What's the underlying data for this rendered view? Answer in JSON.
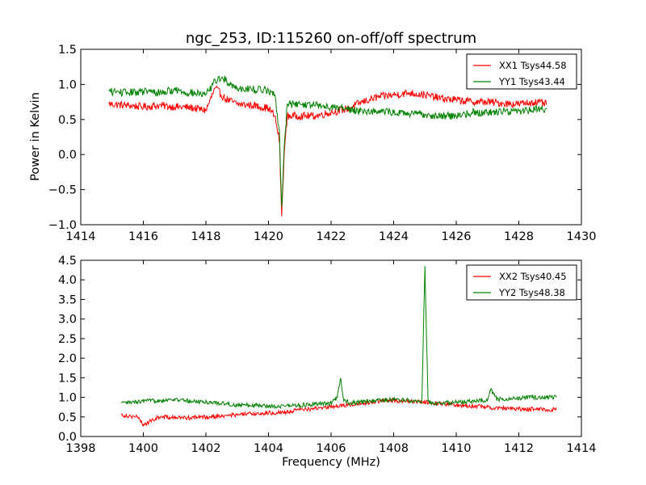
{
  "figure": {
    "title": "ngc_253, ID:115260 on-off/off spectrum",
    "xlabel": "Frequency (MHz)",
    "ylabel": "Power in Kelvin"
  },
  "chart_data": [
    {
      "type": "line",
      "title": "ngc_253, ID:115260 on-off/off spectrum",
      "xlabel": "",
      "ylabel": "Power in Kelvin",
      "xlim": [
        1414,
        1430
      ],
      "ylim": [
        -1.0,
        1.5
      ],
      "xticks": [
        1414,
        1416,
        1418,
        1420,
        1422,
        1424,
        1426,
        1428,
        1430
      ],
      "yticks": [
        -1.0,
        -0.5,
        0.0,
        0.5,
        1.0,
        1.5
      ],
      "xtick_labels": [
        "1414",
        "1416",
        "1418",
        "1420",
        "1422",
        "1424",
        "1426",
        "1428",
        "1430"
      ],
      "ytick_labels": [
        "−1.0",
        "−0.5",
        "0.0",
        "0.5",
        "1.0",
        "1.5"
      ],
      "grid": false,
      "legend": "top-right",
      "series": [
        {
          "name": "XX1 Tsys44.58",
          "color": "#ff0000",
          "x": [
            1414.9,
            1415.5,
            1416.0,
            1416.5,
            1417.0,
            1417.5,
            1418.0,
            1418.3,
            1418.6,
            1419.0,
            1419.5,
            1420.0,
            1420.2,
            1420.35,
            1420.42,
            1420.5,
            1420.6,
            1421.0,
            1421.5,
            1422.0,
            1422.5,
            1423.0,
            1423.5,
            1424.0,
            1424.5,
            1425.0,
            1425.5,
            1426.0,
            1426.5,
            1427.0,
            1427.5,
            1428.0,
            1428.5,
            1428.9
          ],
          "y": [
            0.72,
            0.7,
            0.68,
            0.7,
            0.68,
            0.67,
            0.63,
            0.95,
            0.8,
            0.72,
            0.7,
            0.66,
            0.55,
            0.2,
            -0.88,
            0.0,
            0.55,
            0.55,
            0.55,
            0.6,
            0.65,
            0.75,
            0.82,
            0.85,
            0.88,
            0.85,
            0.8,
            0.78,
            0.75,
            0.75,
            0.73,
            0.72,
            0.75,
            0.72
          ]
        },
        {
          "name": "YY1 Tsys43.44",
          "color": "#008000",
          "x": [
            1414.9,
            1415.5,
            1416.0,
            1416.5,
            1417.0,
            1417.5,
            1418.0,
            1418.3,
            1418.5,
            1418.8,
            1419.0,
            1419.5,
            1420.0,
            1420.2,
            1420.35,
            1420.42,
            1420.5,
            1420.6,
            1421.0,
            1421.5,
            1422.0,
            1422.5,
            1423.0,
            1423.5,
            1424.0,
            1424.5,
            1425.0,
            1425.5,
            1426.0,
            1426.5,
            1427.0,
            1427.5,
            1428.0,
            1428.5,
            1428.9
          ],
          "y": [
            0.9,
            0.88,
            0.9,
            0.88,
            0.92,
            0.88,
            0.85,
            1.05,
            1.1,
            1.0,
            0.95,
            0.93,
            0.92,
            0.85,
            0.3,
            -0.75,
            0.1,
            0.72,
            0.72,
            0.7,
            0.68,
            0.65,
            0.62,
            0.62,
            0.6,
            0.58,
            0.57,
            0.55,
            0.55,
            0.6,
            0.6,
            0.62,
            0.62,
            0.65,
            0.65
          ]
        }
      ]
    },
    {
      "type": "line",
      "title": "",
      "xlabel": "Frequency (MHz)",
      "ylabel": "",
      "xlim": [
        1398,
        1414
      ],
      "ylim": [
        0.0,
        4.5
      ],
      "xticks": [
        1398,
        1400,
        1402,
        1404,
        1406,
        1408,
        1410,
        1412,
        1414
      ],
      "yticks": [
        0.0,
        0.5,
        1.0,
        1.5,
        2.0,
        2.5,
        3.0,
        3.5,
        4.0,
        4.5
      ],
      "xtick_labels": [
        "1398",
        "1400",
        "1402",
        "1404",
        "1406",
        "1408",
        "1410",
        "1412",
        "1414"
      ],
      "ytick_labels": [
        "0.0",
        "0.5",
        "1.0",
        "1.5",
        "2.0",
        "2.5",
        "3.0",
        "3.5",
        "4.0",
        "4.5"
      ],
      "grid": false,
      "legend": "top-right",
      "series": [
        {
          "name": "XX2 Tsys40.45",
          "color": "#ff0000",
          "x": [
            1399.3,
            1399.8,
            1400.0,
            1400.5,
            1401.0,
            1401.5,
            1402.0,
            1402.5,
            1403.0,
            1403.5,
            1404.0,
            1404.5,
            1405.0,
            1405.5,
            1406.0,
            1406.5,
            1407.0,
            1407.5,
            1408.0,
            1408.5,
            1409.0,
            1409.5,
            1410.0,
            1410.5,
            1411.0,
            1411.5,
            1412.0,
            1412.5,
            1413.2
          ],
          "y": [
            0.55,
            0.5,
            0.3,
            0.5,
            0.48,
            0.48,
            0.5,
            0.52,
            0.55,
            0.58,
            0.6,
            0.62,
            0.68,
            0.72,
            0.76,
            0.8,
            0.85,
            0.9,
            0.92,
            0.9,
            0.88,
            0.85,
            0.8,
            0.78,
            0.75,
            0.72,
            0.7,
            0.7,
            0.68
          ]
        },
        {
          "name": "YY2 Tsys48.38",
          "color": "#008000",
          "x": [
            1399.3,
            1399.8,
            1400.0,
            1400.5,
            1401.0,
            1401.5,
            1402.0,
            1402.5,
            1403.0,
            1403.5,
            1404.0,
            1404.5,
            1405.0,
            1405.5,
            1406.0,
            1406.2,
            1406.3,
            1406.4,
            1406.6,
            1407.0,
            1407.5,
            1408.0,
            1408.5,
            1408.9,
            1409.0,
            1409.05,
            1409.1,
            1409.2,
            1409.5,
            1410.0,
            1410.5,
            1411.0,
            1411.1,
            1411.3,
            1411.5,
            1412.0,
            1412.5,
            1413.2
          ],
          "y": [
            0.85,
            0.88,
            0.9,
            0.92,
            0.95,
            0.9,
            0.88,
            0.85,
            0.8,
            0.8,
            0.78,
            0.78,
            0.8,
            0.82,
            0.85,
            1.0,
            1.48,
            0.95,
            0.85,
            0.88,
            0.92,
            0.95,
            0.92,
            0.9,
            4.35,
            2.5,
            0.9,
            0.85,
            0.85,
            0.88,
            0.9,
            0.92,
            1.2,
            0.95,
            0.95,
            0.98,
            1.0,
            1.0
          ]
        }
      ]
    }
  ]
}
